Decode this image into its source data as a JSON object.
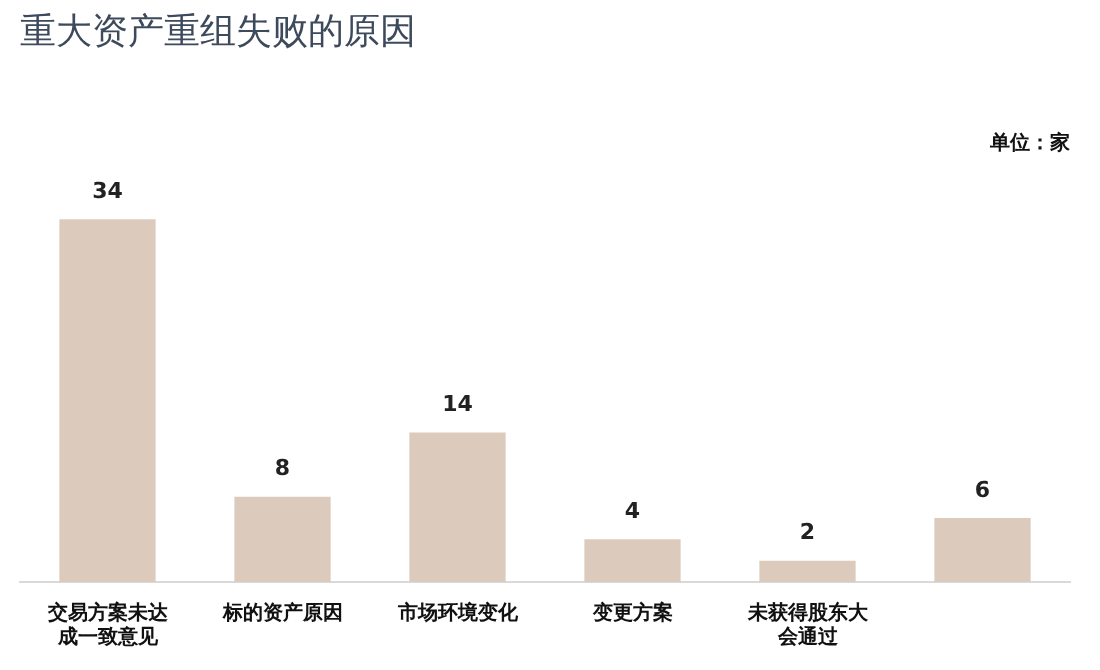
{
  "chart_data": {
    "type": "bar",
    "title": "重大资产重组失败的原因",
    "annotations": [
      "单位：家"
    ],
    "categories": [
      "交易方案未达成一致意见",
      "标的资产原因",
      "市场环境变化",
      "变更方案",
      "未获得股东大会通过",
      null
    ],
    "values": [
      34,
      8,
      14,
      4,
      2,
      6
    ],
    "color": "#dccbbd",
    "data_labels": true,
    "grid": false,
    "legend": false
  }
}
